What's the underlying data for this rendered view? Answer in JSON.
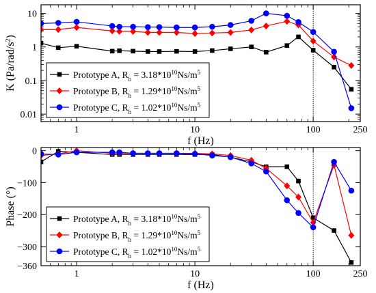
{
  "chart_data": [
    {
      "type": "line",
      "xscale": "log",
      "yscale": "log",
      "xlabel": "f (Hz)",
      "ylabel": {
        "main": "K  (Pa/rad/s",
        "sup": "2",
        "close": ")"
      },
      "xlim": [
        0.5,
        250
      ],
      "ylim": [
        0.006,
        18
      ],
      "xticks": [
        1,
        10,
        100,
        250
      ],
      "xtick_labels": [
        "1",
        "10",
        "100",
        "250"
      ],
      "yticks": [
        0.01,
        0.1,
        1,
        10
      ],
      "ytick_labels": [
        "0.01",
        "0.1",
        "1",
        "10"
      ],
      "vline_x": 100,
      "legend_position": "lower-left",
      "series": [
        {
          "name": "Prototype A, R_h = 3.18*10^10 Ns/m^5",
          "label": {
            "prefix": "Prototype A, R",
            "sub": "h",
            "mid": " = 3.18*10",
            "exp": "10",
            "unit": "Ns/m",
            "unit_exp": "5"
          },
          "color": "#000000",
          "marker": "square",
          "x": [
            0.5,
            0.7,
            1,
            2,
            2.3,
            3,
            4,
            5,
            7,
            10,
            14,
            20,
            30,
            40,
            60,
            75,
            100,
            150,
            210
          ],
          "y": [
            1.3,
            0.95,
            1.05,
            0.75,
            0.77,
            0.75,
            0.73,
            0.73,
            0.74,
            0.73,
            0.78,
            0.88,
            1.0,
            0.7,
            1.1,
            2.0,
            0.8,
            0.25,
            0.055
          ]
        },
        {
          "name": "Prototype B, R_h = 1.29*10^10 Ns/m^5",
          "label": {
            "prefix": "Prototype B, R",
            "sub": "h",
            "mid": " = 1.29*10",
            "exp": "10",
            "unit": "Ns/m",
            "unit_exp": "5"
          },
          "color": "#ff0000",
          "marker": "diamond",
          "x": [
            0.5,
            0.7,
            1,
            2,
            2.3,
            3,
            4,
            5,
            7,
            10,
            14,
            20,
            30,
            40,
            60,
            75,
            100,
            150,
            210
          ],
          "y": [
            3.3,
            3.3,
            3.8,
            3.0,
            2.9,
            2.9,
            2.7,
            2.7,
            2.7,
            2.5,
            2.6,
            2.7,
            3.2,
            4.2,
            5.8,
            4.5,
            1.5,
            0.5,
            0.28
          ]
        },
        {
          "name": "Prototype C, R_h = 1.02*10^10 Ns/m^5",
          "label": {
            "prefix": "Prototype C, R",
            "sub": "h",
            "mid": " = 1.02*10",
            "exp": "10",
            "unit": "Ns/m",
            "unit_exp": "5"
          },
          "color": "#0000ff",
          "marker": "circle",
          "x": [
            0.5,
            0.7,
            1,
            2,
            2.3,
            3,
            4,
            5,
            7,
            10,
            14,
            20,
            30,
            40,
            60,
            75,
            100,
            150,
            210
          ],
          "y": [
            5.0,
            5.2,
            5.6,
            4.2,
            4.0,
            4.0,
            3.9,
            3.9,
            3.8,
            3.8,
            4.0,
            4.5,
            6.0,
            10.0,
            8.5,
            5.5,
            2.8,
            0.72,
            0.015
          ]
        }
      ]
    },
    {
      "type": "line",
      "xscale": "log",
      "yscale": "linear",
      "xlabel": "f (Hz)",
      "ylabel": {
        "main": "Phase (°)",
        "sup": "",
        "close": ""
      },
      "xlim": [
        0.5,
        250
      ],
      "ylim": [
        -360,
        10
      ],
      "xticks": [
        1,
        10,
        100,
        250
      ],
      "xtick_labels": [
        "1",
        "10",
        "100",
        "250"
      ],
      "yticks": [
        0,
        -100,
        -200,
        -300,
        -360
      ],
      "ytick_labels": [
        "0",
        "−100",
        "−200",
        "−300",
        "−360"
      ],
      "vline_x": 100,
      "legend_position": "lower-left",
      "series": [
        {
          "name": "Prototype A, R_h = 3.18*10^10 Ns/m^5",
          "label": {
            "prefix": "Prototype A, R",
            "sub": "h",
            "mid": " = 3.18*10",
            "exp": "10",
            "unit": "Ns/m",
            "unit_exp": "5"
          },
          "color": "#000000",
          "marker": "square",
          "x": [
            0.5,
            0.7,
            1,
            2,
            2.3,
            3,
            4,
            5,
            7,
            10,
            14,
            20,
            30,
            40,
            60,
            75,
            100,
            150,
            210
          ],
          "y": [
            -35,
            -2,
            -5,
            -12,
            -12,
            -12,
            -12,
            -12,
            -12,
            -12,
            -12,
            -20,
            -35,
            -50,
            -50,
            -95,
            -210,
            -250,
            -350
          ]
        },
        {
          "name": "Prototype B, R_h = 1.29*10^10 Ns/m^5",
          "label": {
            "prefix": "Prototype B, R",
            "sub": "h",
            "mid": " = 1.29*10",
            "exp": "10",
            "unit": "Ns/m",
            "unit_exp": "5"
          },
          "color": "#ff0000",
          "marker": "diamond",
          "x": [
            0.5,
            0.7,
            1,
            2,
            2.3,
            3,
            4,
            5,
            7,
            10,
            14,
            20,
            30,
            40,
            60,
            75,
            100,
            150,
            210
          ],
          "y": [
            -15,
            -10,
            0,
            -8,
            -8,
            -8,
            -8,
            -8,
            -8,
            -8,
            -10,
            -15,
            -30,
            -55,
            -110,
            -145,
            -225,
            -45,
            -265
          ]
        },
        {
          "name": "Prototype C, R_h = 1.02*10^10 Ns/m^5",
          "label": {
            "prefix": "Prototype C, R",
            "sub": "h",
            "mid": " = 1.02*10",
            "exp": "10",
            "unit": "Ns/m",
            "unit_exp": "5"
          },
          "color": "#0000ff",
          "marker": "circle",
          "x": [
            0.5,
            0.7,
            1,
            2,
            2.3,
            3,
            4,
            5,
            7,
            10,
            14,
            20,
            30,
            40,
            60,
            75,
            100,
            150,
            210
          ],
          "y": [
            -10,
            -12,
            -5,
            -5,
            -5,
            -8,
            -8,
            -8,
            -8,
            -10,
            -15,
            -20,
            -40,
            -65,
            -155,
            -195,
            -240,
            -35,
            -125
          ]
        }
      ]
    }
  ]
}
